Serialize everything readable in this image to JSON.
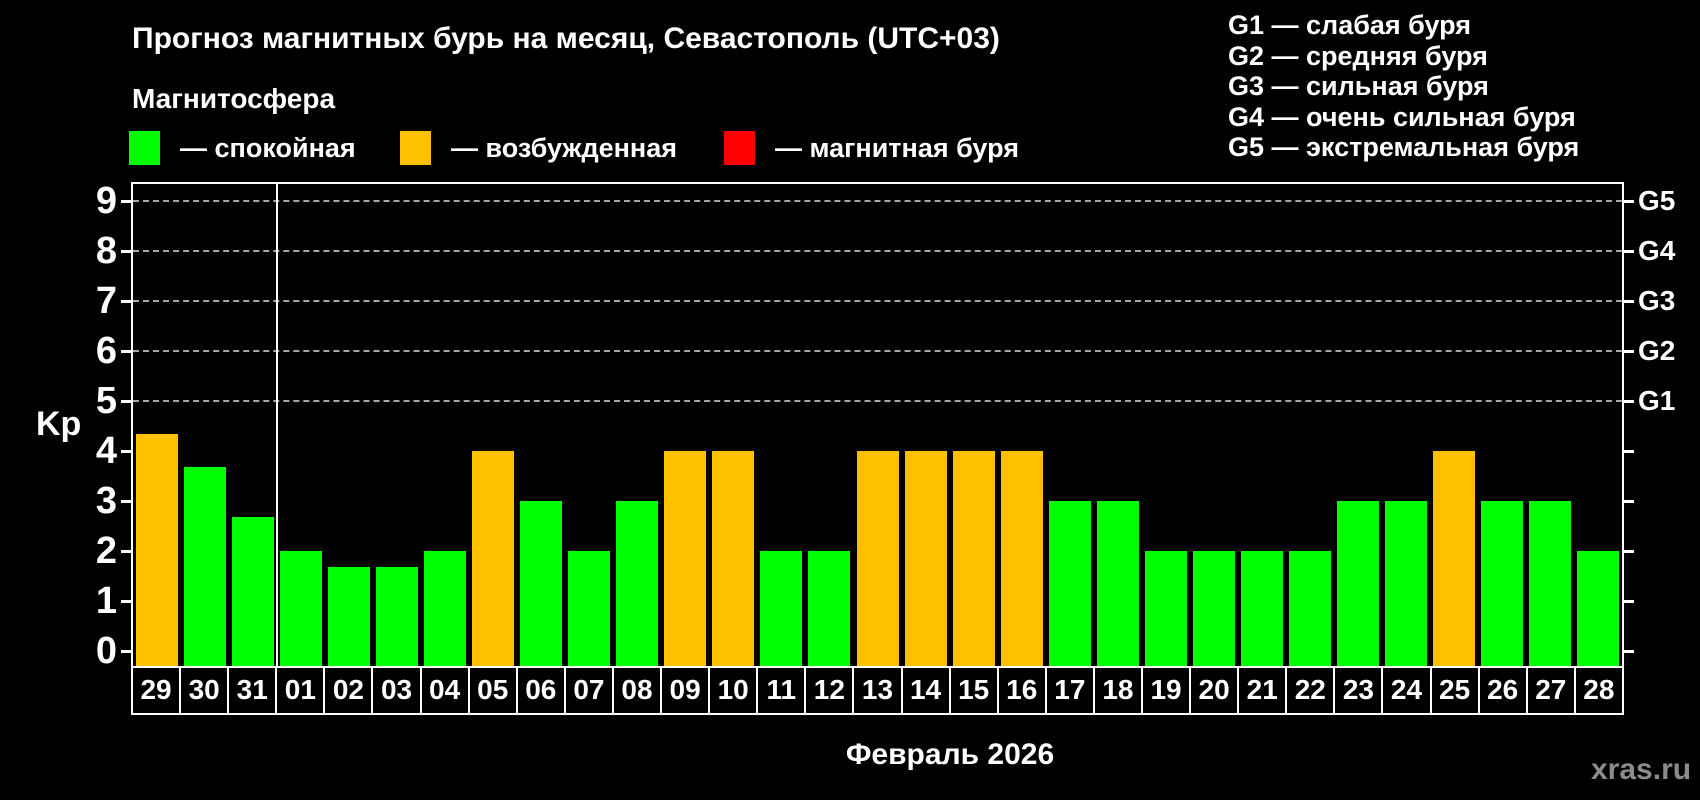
{
  "page": {
    "title": "Прогноз магнитных бурь на месяц, Севастополь (UTC+03)",
    "subtitle": "Магнитосфера",
    "watermark": "xras.ru"
  },
  "legend": {
    "items": [
      {
        "name": "quiet",
        "label": "— спокойная",
        "color": "#00ff00"
      },
      {
        "name": "excited",
        "label": "— возбужденная",
        "color": "#ffc000"
      },
      {
        "name": "storm",
        "label": "— магнитная буря",
        "color": "#ff0000"
      }
    ]
  },
  "g_scale_legend": [
    "G1 — слабая буря",
    "G2 — средняя буря",
    "G3 — сильная буря",
    "G4 — очень сильная буря",
    "G5 — экстремальная буря"
  ],
  "chart_data": {
    "type": "bar",
    "title": "Прогноз магнитных бурь на месяц, Севастополь (UTC+03)",
    "ylabel": "Kp",
    "xlabel": "Февраль 2026",
    "ylim": [
      0,
      9
    ],
    "yticks": [
      0,
      1,
      2,
      3,
      4,
      5,
      6,
      7,
      8,
      9
    ],
    "gridline_values": [
      5,
      6,
      7,
      8,
      9
    ],
    "grid": "dashed horizontal at Kp 5..9",
    "legend_position": "top",
    "right_axis": [
      {
        "value": 5,
        "label": "G1"
      },
      {
        "value": 6,
        "label": "G2"
      },
      {
        "value": 7,
        "label": "G3"
      },
      {
        "value": 8,
        "label": "G4"
      },
      {
        "value": 9,
        "label": "G5"
      }
    ],
    "month_separator_after_index": 2,
    "status_colors": {
      "quiet": "#00ff00",
      "excited": "#ffc000",
      "storm": "#ff0000"
    },
    "categories": [
      "29",
      "30",
      "31",
      "01",
      "02",
      "03",
      "04",
      "05",
      "06",
      "07",
      "08",
      "09",
      "10",
      "11",
      "12",
      "13",
      "14",
      "15",
      "16",
      "17",
      "18",
      "19",
      "20",
      "21",
      "22",
      "23",
      "24",
      "25",
      "26",
      "27",
      "28"
    ],
    "values": [
      4.33,
      3.67,
      2.67,
      2,
      1.67,
      1.67,
      2,
      4,
      3,
      2,
      3,
      4,
      4,
      2,
      2,
      4,
      4,
      4,
      4,
      3,
      3,
      2,
      2,
      2,
      2,
      3,
      3,
      4,
      3,
      3,
      2
    ],
    "statuses": [
      "excited",
      "quiet",
      "quiet",
      "quiet",
      "quiet",
      "quiet",
      "quiet",
      "excited",
      "quiet",
      "quiet",
      "quiet",
      "excited",
      "excited",
      "quiet",
      "quiet",
      "excited",
      "excited",
      "excited",
      "excited",
      "quiet",
      "quiet",
      "quiet",
      "quiet",
      "quiet",
      "quiet",
      "quiet",
      "quiet",
      "excited",
      "quiet",
      "quiet",
      "quiet"
    ]
  }
}
